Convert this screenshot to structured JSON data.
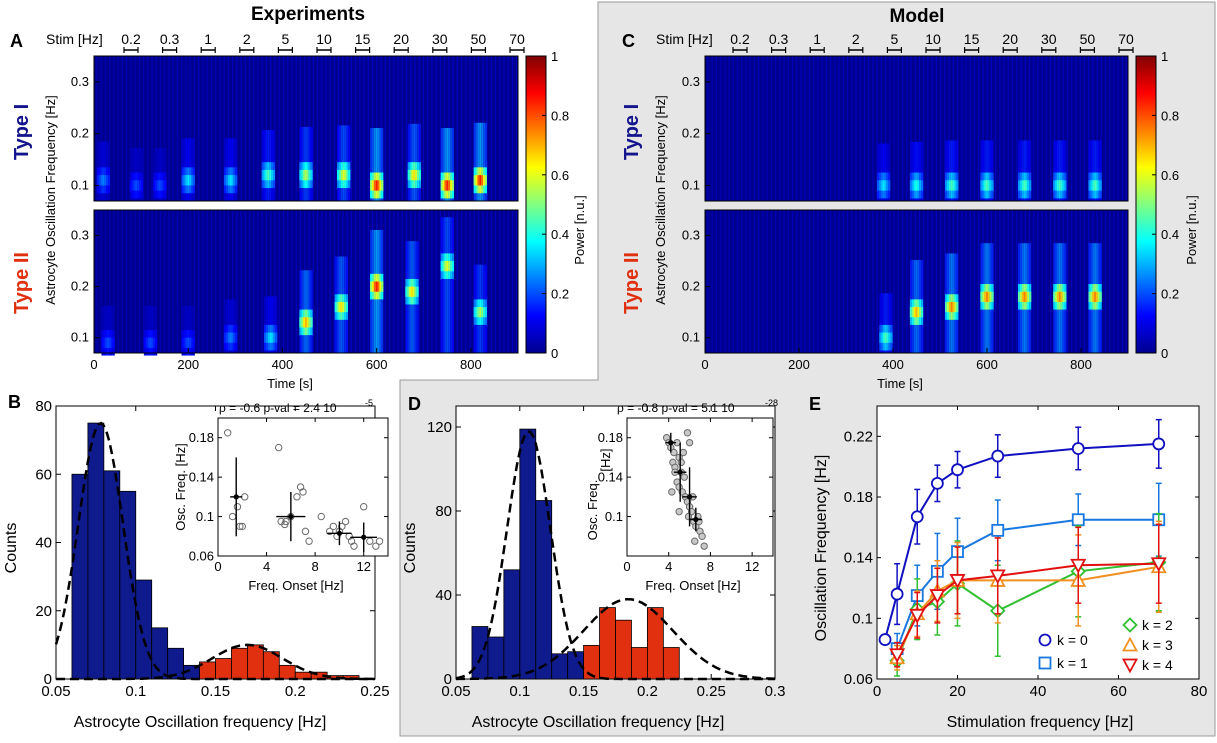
{
  "panels": {
    "A": {
      "letter": "A",
      "title": "Experiments"
    },
    "B": {
      "letter": "B"
    },
    "C": {
      "letter": "C",
      "title": "Model"
    },
    "D": {
      "letter": "D"
    },
    "E": {
      "letter": "E"
    }
  },
  "stim_label": "Stim [Hz]",
  "stim_freqs": [
    "0.2",
    "0.3",
    "1",
    "2",
    "5",
    "10",
    "15",
    "20",
    "30",
    "50",
    "70"
  ],
  "type_labels": {
    "type1": "Type I",
    "type2": "Type II"
  },
  "colors": {
    "type1": "#14148c",
    "type2": "#e03010",
    "bar_blue": "#0f1a8c",
    "bar_red": "#e0300f",
    "shade": "#e6e6e6"
  },
  "colorbar": {
    "label": "Power [n.u.]",
    "ticks": [
      "0",
      "0.2",
      "0.4",
      "0.6",
      "0.8",
      "1"
    ],
    "colormap": "jet"
  },
  "chart_data": [
    {
      "id": "A-typeI",
      "type": "heatmap",
      "ylabel": "Astrocyte Oscillation Frequency [Hz]",
      "yticks": [
        "0.1",
        "0.2",
        "0.3"
      ],
      "ylim": [
        0.07,
        0.35
      ],
      "xlim": [
        0,
        900
      ],
      "bands": [
        {
          "t": 20,
          "f": 0.11,
          "p": 0.25
        },
        {
          "t": 90,
          "f": 0.1,
          "p": 0.2
        },
        {
          "t": 140,
          "f": 0.1,
          "p": 0.2
        },
        {
          "t": 200,
          "f": 0.11,
          "p": 0.35
        },
        {
          "t": 290,
          "f": 0.11,
          "p": 0.35
        },
        {
          "t": 370,
          "f": 0.12,
          "p": 0.45
        },
        {
          "t": 450,
          "f": 0.12,
          "p": 0.55
        },
        {
          "t": 530,
          "f": 0.12,
          "p": 0.6
        },
        {
          "t": 600,
          "f": 0.1,
          "p": 0.85
        },
        {
          "t": 680,
          "f": 0.12,
          "p": 0.65
        },
        {
          "t": 750,
          "f": 0.1,
          "p": 0.85
        },
        {
          "t": 820,
          "f": 0.11,
          "p": 0.85
        }
      ]
    },
    {
      "id": "A-typeII",
      "type": "heatmap",
      "ylabel": "Astrocyte Oscillation Frequency [Hz]",
      "xlabel": "Time [s]",
      "yticks": [
        "0.1",
        "0.2",
        "0.3"
      ],
      "xticks": [
        "0",
        "200",
        "400",
        "600",
        "800"
      ],
      "ylim": [
        0.07,
        0.35
      ],
      "xlim": [
        0,
        900
      ],
      "bands": [
        {
          "t": 30,
          "f": 0.09,
          "p": 0.2
        },
        {
          "t": 120,
          "f": 0.09,
          "p": 0.2
        },
        {
          "t": 200,
          "f": 0.09,
          "p": 0.2
        },
        {
          "t": 290,
          "f": 0.1,
          "p": 0.25
        },
        {
          "t": 375,
          "f": 0.1,
          "p": 0.35
        },
        {
          "t": 450,
          "f": 0.13,
          "p": 0.7
        },
        {
          "t": 525,
          "f": 0.16,
          "p": 0.65
        },
        {
          "t": 600,
          "f": 0.2,
          "p": 0.85
        },
        {
          "t": 675,
          "f": 0.19,
          "p": 0.65
        },
        {
          "t": 750,
          "f": 0.24,
          "p": 0.6
        },
        {
          "t": 820,
          "f": 0.15,
          "p": 0.55
        }
      ]
    },
    {
      "id": "C-typeI",
      "type": "heatmap",
      "ylabel": "Astrocyte Oscillation Frequency [Hz]",
      "yticks": [
        "0.1",
        "0.2",
        "0.3"
      ],
      "ylim": [
        0.07,
        0.35
      ],
      "xlim": [
        0,
        900
      ],
      "bands": [
        {
          "t": 380,
          "f": 0.1,
          "p": 0.35
        },
        {
          "t": 450,
          "f": 0.1,
          "p": 0.4
        },
        {
          "t": 525,
          "f": 0.1,
          "p": 0.45
        },
        {
          "t": 600,
          "f": 0.1,
          "p": 0.45
        },
        {
          "t": 680,
          "f": 0.1,
          "p": 0.45
        },
        {
          "t": 755,
          "f": 0.1,
          "p": 0.45
        },
        {
          "t": 830,
          "f": 0.1,
          "p": 0.45
        }
      ]
    },
    {
      "id": "C-typeII",
      "type": "heatmap",
      "ylabel": "Astrocyte Oscillation Frequency [Hz]",
      "xlabel": "Time [s]",
      "yticks": [
        "0.1",
        "0.2",
        "0.3"
      ],
      "xticks": [
        "0",
        "200",
        "400",
        "600",
        "800"
      ],
      "ylim": [
        0.07,
        0.35
      ],
      "xlim": [
        0,
        900
      ],
      "bands": [
        {
          "t": 385,
          "f": 0.1,
          "p": 0.45
        },
        {
          "t": 450,
          "f": 0.15,
          "p": 0.7
        },
        {
          "t": 525,
          "f": 0.16,
          "p": 0.75
        },
        {
          "t": 600,
          "f": 0.18,
          "p": 0.75
        },
        {
          "t": 680,
          "f": 0.18,
          "p": 0.75
        },
        {
          "t": 755,
          "f": 0.18,
          "p": 0.75
        },
        {
          "t": 830,
          "f": 0.18,
          "p": 0.75
        }
      ]
    },
    {
      "id": "B-hist",
      "type": "bar",
      "xlabel": "Astrocyte Oscillation frequency [Hz]",
      "ylabel": "Counts",
      "xlim": [
        0.05,
        0.25
      ],
      "ylim": [
        0,
        80
      ],
      "xticks": [
        "0.05",
        "0.1",
        "0.15",
        "0.2",
        "0.25"
      ],
      "yticks": [
        "0",
        "20",
        "40",
        "60",
        "80"
      ],
      "bin_width": 0.01,
      "blue_bins": [
        {
          "x": 0.065,
          "v": 60
        },
        {
          "x": 0.075,
          "v": 75
        },
        {
          "x": 0.085,
          "v": 61
        },
        {
          "x": 0.095,
          "v": 55
        },
        {
          "x": 0.105,
          "v": 29
        },
        {
          "x": 0.115,
          "v": 15
        },
        {
          "x": 0.125,
          "v": 9
        },
        {
          "x": 0.135,
          "v": 4
        }
      ],
      "red_bins": [
        {
          "x": 0.145,
          "v": 5
        },
        {
          "x": 0.155,
          "v": 6
        },
        {
          "x": 0.165,
          "v": 9
        },
        {
          "x": 0.175,
          "v": 10
        },
        {
          "x": 0.185,
          "v": 8
        },
        {
          "x": 0.195,
          "v": 4
        },
        {
          "x": 0.205,
          "v": 2
        },
        {
          "x": 0.215,
          "v": 2
        },
        {
          "x": 0.225,
          "v": 1
        },
        {
          "x": 0.235,
          "v": 1
        }
      ],
      "fits": [
        {
          "mu": 0.078,
          "sigma": 0.014,
          "amp": 75
        },
        {
          "mu": 0.17,
          "sigma": 0.022,
          "amp": 10
        }
      ]
    },
    {
      "id": "B-inset",
      "type": "scatter",
      "xlabel": "Freq. Onset [Hz]",
      "ylabel": "Osc. Freq. [Hz]",
      "stats": "ρ = -0.6   p-val = 2.4 10",
      "stats_exp": "-5",
      "xlim": [
        0,
        14
      ],
      "ylim": [
        0.06,
        0.2
      ],
      "xticks": [
        "0",
        "4",
        "8",
        "12"
      ],
      "yticks": [
        "0.06",
        "0.1",
        "0.14",
        "0.18"
      ],
      "points": [
        [
          0.8,
          0.185
        ],
        [
          1.2,
          0.1
        ],
        [
          1.6,
          0.11
        ],
        [
          1.8,
          0.09
        ],
        [
          2.0,
          0.09
        ],
        [
          2.2,
          0.12
        ],
        [
          5.0,
          0.17
        ],
        [
          5.2,
          0.095
        ],
        [
          5.5,
          0.092
        ],
        [
          5.6,
          0.095
        ],
        [
          6.0,
          0.1
        ],
        [
          6.5,
          0.12
        ],
        [
          6.8,
          0.13
        ],
        [
          7.0,
          0.125
        ],
        [
          7.2,
          0.085
        ],
        [
          7.5,
          0.075
        ],
        [
          8.5,
          0.1
        ],
        [
          9.2,
          0.085
        ],
        [
          9.5,
          0.09
        ],
        [
          9.8,
          0.08
        ],
        [
          10.0,
          0.085
        ],
        [
          10.2,
          0.09
        ],
        [
          10.5,
          0.095
        ],
        [
          10.8,
          0.08
        ],
        [
          11.0,
          0.075
        ],
        [
          11.2,
          0.07
        ],
        [
          12.0,
          0.11
        ],
        [
          12.5,
          0.075
        ],
        [
          13.0,
          0.07
        ],
        [
          13.3,
          0.075
        ]
      ],
      "means": [
        {
          "x": 1.5,
          "y": 0.12,
          "xerr": 0.5,
          "yerr": 0.04
        },
        {
          "x": 6.0,
          "y": 0.1,
          "xerr": 1.2,
          "yerr": 0.025
        },
        {
          "x": 10.0,
          "y": 0.083,
          "xerr": 1.0,
          "yerr": 0.012
        },
        {
          "x": 12.0,
          "y": 0.079,
          "xerr": 1.1,
          "yerr": 0.015
        }
      ]
    },
    {
      "id": "D-hist",
      "type": "bar",
      "xlabel": "Astrocyte Oscillation frequency [Hz]",
      "ylabel": "Counts",
      "xlim": [
        0.05,
        0.3
      ],
      "ylim": [
        0,
        130
      ],
      "xticks": [
        "0.05",
        "0.1",
        "0.15",
        "0.2",
        "0.25",
        "0.3"
      ],
      "yticks": [
        "0",
        "40",
        "80",
        "120"
      ],
      "bin_width": 0.0125,
      "blue_bins": [
        {
          "x": 0.06875,
          "v": 25
        },
        {
          "x": 0.08125,
          "v": 20
        },
        {
          "x": 0.09375,
          "v": 52
        },
        {
          "x": 0.10625,
          "v": 119
        },
        {
          "x": 0.11875,
          "v": 85
        },
        {
          "x": 0.13125,
          "v": 12
        },
        {
          "x": 0.14375,
          "v": 13
        }
      ],
      "red_bins": [
        {
          "x": 0.15625,
          "v": 16
        },
        {
          "x": 0.16875,
          "v": 34
        },
        {
          "x": 0.18125,
          "v": 28
        },
        {
          "x": 0.19375,
          "v": 15
        },
        {
          "x": 0.20625,
          "v": 34
        },
        {
          "x": 0.21875,
          "v": 15
        }
      ],
      "fits": [
        {
          "mu": 0.107,
          "sigma": 0.017,
          "amp": 118
        },
        {
          "mu": 0.185,
          "sigma": 0.035,
          "amp": 38
        }
      ]
    },
    {
      "id": "D-inset",
      "type": "scatter",
      "xlabel": "Freq. Onset [Hz]",
      "ylabel": "Osc. Freq.",
      "ylabel_unit": "[Hz]",
      "stats": "ρ = -0.8   p-val = 5.1 10",
      "stats_exp": "-28",
      "xlim": [
        0,
        14
      ],
      "ylim": [
        0.06,
        0.2
      ],
      "xticks": [
        "0",
        "4",
        "8",
        "12"
      ],
      "yticks": [
        "0.1",
        "0.14",
        "0.18"
      ],
      "points": [
        [
          3.8,
          0.18
        ],
        [
          4.0,
          0.175
        ],
        [
          4.2,
          0.17
        ],
        [
          4.5,
          0.165
        ],
        [
          4.8,
          0.175
        ],
        [
          5.0,
          0.16
        ],
        [
          4.4,
          0.155
        ],
        [
          4.6,
          0.15
        ],
        [
          5.2,
          0.145
        ],
        [
          5.5,
          0.14
        ],
        [
          4.8,
          0.135
        ],
        [
          5.0,
          0.13
        ],
        [
          5.3,
          0.125
        ],
        [
          5.6,
          0.12
        ],
        [
          5.8,
          0.115
        ],
        [
          6.0,
          0.11
        ],
        [
          6.2,
          0.105
        ],
        [
          5.9,
          0.1
        ],
        [
          6.4,
          0.095
        ],
        [
          6.6,
          0.09
        ],
        [
          7.0,
          0.085
        ],
        [
          6.8,
          0.1
        ],
        [
          7.2,
          0.08
        ],
        [
          6.5,
          0.075
        ],
        [
          5.2,
          0.155
        ],
        [
          4.6,
          0.145
        ],
        [
          5.4,
          0.165
        ],
        [
          5.8,
          0.185
        ],
        [
          6.0,
          0.175
        ],
        [
          4.3,
          0.125
        ],
        [
          6.3,
          0.12
        ],
        [
          7.4,
          0.07
        ],
        [
          5.0,
          0.105
        ],
        [
          6.9,
          0.095
        ]
      ],
      "means": [
        {
          "x": 4.2,
          "y": 0.175,
          "xerr": 0.5,
          "yerr": 0.01
        },
        {
          "x": 5.1,
          "y": 0.145,
          "xerr": 0.6,
          "yerr": 0.03
        },
        {
          "x": 6.0,
          "y": 0.12,
          "xerr": 0.7,
          "yerr": 0.03
        },
        {
          "x": 6.6,
          "y": 0.097,
          "xerr": 0.6,
          "yerr": 0.012
        }
      ]
    },
    {
      "id": "E-line",
      "type": "line",
      "xlabel": "Stimulation frequency [Hz]",
      "ylabel": "Oscillation Frequency [Hz]",
      "xlim": [
        0,
        80
      ],
      "ylim": [
        0.06,
        0.24
      ],
      "xticks": [
        "0",
        "20",
        "40",
        "60",
        "80"
      ],
      "yticks": [
        "0.06",
        "0.1",
        "0.14",
        "0.18",
        "0.22"
      ],
      "series": [
        {
          "name": "k = 0",
          "color": "#1010c0",
          "marker": "circle",
          "x": [
            2,
            5,
            10,
            15,
            20,
            30,
            50,
            70
          ],
          "y": [
            0.086,
            0.116,
            0.167,
            0.189,
            0.198,
            0.207,
            0.212,
            0.215
          ],
          "err": [
            0,
            0.02,
            0.018,
            0.012,
            0.012,
            0.014,
            0.014,
            0.016
          ]
        },
        {
          "name": "k = 1",
          "color": "#1878e0",
          "marker": "square",
          "x": [
            5,
            10,
            15,
            20,
            30,
            50,
            70
          ],
          "y": [
            0.08,
            0.115,
            0.131,
            0.144,
            0.158,
            0.165,
            0.165
          ],
          "err": [
            0.01,
            0.02,
            0.025,
            0.022,
            0.02,
            0.017,
            0.024
          ]
        },
        {
          "name": "k = 2",
          "color": "#30c030",
          "marker": "diamond",
          "x": [
            5,
            10,
            15,
            20,
            30,
            50,
            70
          ],
          "y": [
            0.072,
            0.106,
            0.111,
            0.123,
            0.105,
            0.131,
            0.137
          ],
          "err": [
            0.01,
            0.02,
            0.022,
            0.028,
            0.03,
            0.03,
            0.032
          ]
        },
        {
          "name": "k = 3",
          "color": "#f09020",
          "marker": "triangle-up",
          "x": [
            5,
            10,
            15,
            20,
            30,
            50,
            70
          ],
          "y": [
            0.074,
            0.103,
            0.118,
            0.125,
            0.125,
            0.125,
            0.134
          ],
          "err": [
            0.008,
            0.015,
            0.02,
            0.025,
            0.028,
            0.03,
            0.03
          ]
        },
        {
          "name": "k = 4",
          "color": "#e01010",
          "marker": "triangle-down",
          "x": [
            5,
            10,
            15,
            20,
            30,
            50,
            70
          ],
          "y": [
            0.076,
            0.102,
            0.115,
            0.125,
            0.128,
            0.135,
            0.136
          ],
          "err": [
            0.008,
            0.015,
            0.018,
            0.022,
            0.025,
            0.025,
            0.026
          ]
        }
      ]
    }
  ]
}
